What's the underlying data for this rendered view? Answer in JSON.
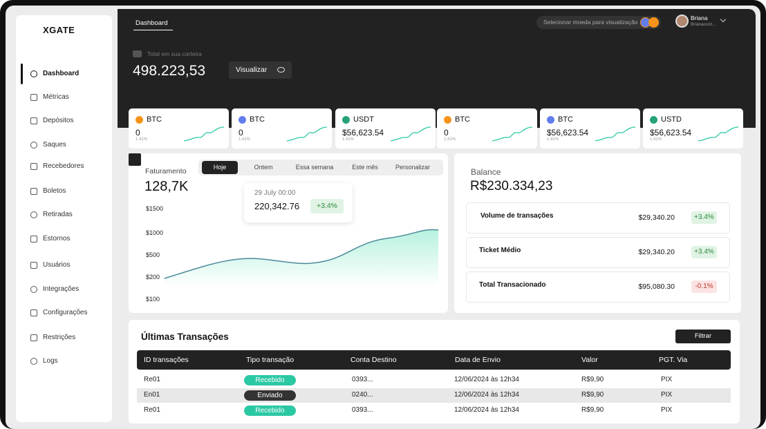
{
  "sidebar": {
    "logo": "XGATE",
    "items": [
      "Dashboard",
      "Métricas",
      "Depósitos",
      "Saques",
      "Recebedores",
      "Boletos",
      "Retiradas",
      "Estornos",
      "Usuários",
      "Integrações",
      "Configurações",
      "Restrições",
      "Logs"
    ]
  },
  "topbar": {
    "tab": "Dashboard",
    "currency_selector": "Selecionar moeda para visualização",
    "user": {
      "name": "Briana",
      "handle": "Brianacont..."
    }
  },
  "wallet": {
    "label": "Total em sua carteira",
    "total": "498.223,53",
    "button": "Visualizar"
  },
  "assets": [
    {
      "symbol": "BTC",
      "value": "0",
      "change": "1.41%"
    },
    {
      "symbol": "BTC",
      "value": "0",
      "change": "1.41%"
    },
    {
      "symbol": "USDT",
      "value": "$56,623.54",
      "change": "1.41%"
    },
    {
      "symbol": "BTC",
      "value": "0",
      "change": "1.41%"
    },
    {
      "symbol": "BTC",
      "value": "$56,623.54",
      "change": "1.41%"
    },
    {
      "symbol": "USTD",
      "value": "$56,623.54",
      "change": "1.41%"
    }
  ],
  "revenue": {
    "title": "Faturamento",
    "total": "128,7K",
    "filters": [
      "Hoje",
      "Ontem",
      "Essa semana",
      "Este mês",
      "Personalizar"
    ],
    "tooltip": {
      "date": "29 July 00:00",
      "value": "220,342.76",
      "change": "+3.4%"
    },
    "y_labels": [
      "$1500",
      "$1000",
      "$500",
      "$200",
      "$100"
    ]
  },
  "balance": {
    "title": "Balance",
    "total": "R$230.334,23",
    "rows": [
      {
        "label": "Volume de transações",
        "amount": "$29,340.20",
        "change": "+3.4%"
      },
      {
        "label": "Ticket Médio",
        "amount": "$29,340.20",
        "change": "+3.4%"
      },
      {
        "label": "Total Transacionado",
        "amount": "$95,080.30",
        "change": "-0.1%"
      }
    ]
  },
  "transactions": {
    "title": "Últimas Transações",
    "filter": "Filtrar",
    "columns": [
      "ID transações",
      "Tipo transação",
      "Conta Destino",
      "Data de Envio",
      "Valor",
      "PGT. Via"
    ],
    "rows": [
      [
        "Re01",
        "Recebido",
        "0393...",
        "12/06/2024 às 12h34",
        "R$9,90",
        "PIX"
      ],
      [
        "En01",
        "Enviado",
        "0240...",
        "12/06/2024 às 12h34",
        "R$9,90",
        "PIX"
      ],
      [
        "Re01",
        "Recebido",
        "0393...",
        "12/06/2024 às 12h34",
        "R$9,90",
        "PIX"
      ]
    ]
  }
}
